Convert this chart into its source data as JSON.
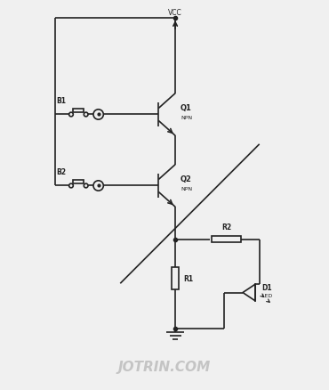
{
  "bg_color": "#f0f0f0",
  "line_color": "#222222",
  "text_color": "#222222",
  "lw": 1.2,
  "figsize": [
    3.7,
    4.39
  ],
  "dpi": 100,
  "watermark": "JOTRIN.COM",
  "vcc_label": "VCC",
  "Q1_label": "Q1",
  "Q1_sub": "NPN",
  "Q2_label": "Q2",
  "Q2_sub": "NPN",
  "B1_label": "B1",
  "B2_label": "B2",
  "R1_label": "R1",
  "R2_label": "R2",
  "D1_label": "D1",
  "D1_sub": "LED",
  "xlim": [
    0,
    10
  ],
  "ylim": [
    0,
    13
  ]
}
